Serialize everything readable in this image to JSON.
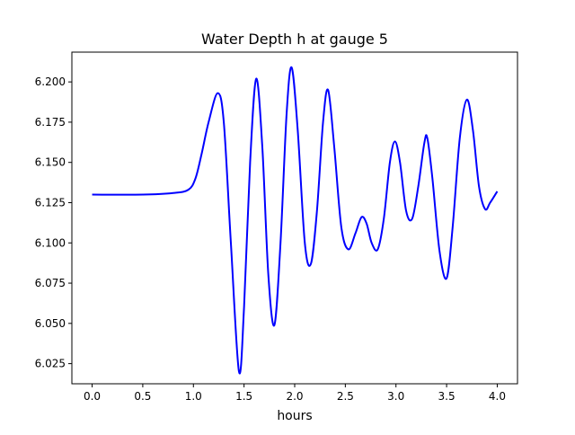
{
  "chart_data": {
    "type": "line",
    "title": "Water Depth h at gauge 5",
    "xlabel": "hours",
    "ylabel": "",
    "xlim": [
      -0.2,
      4.2
    ],
    "ylim": [
      6.0125,
      6.2185
    ],
    "xticks": [
      0.0,
      0.5,
      1.0,
      1.5,
      2.0,
      2.5,
      3.0,
      3.5,
      4.0
    ],
    "xtick_labels": [
      "0.0",
      "0.5",
      "1.0",
      "1.5",
      "2.0",
      "2.5",
      "3.0",
      "3.5",
      "4.0"
    ],
    "yticks": [
      6.025,
      6.05,
      6.075,
      6.1,
      6.125,
      6.15,
      6.175,
      6.2
    ],
    "ytick_labels": [
      "6.025",
      "6.050",
      "6.075",
      "6.100",
      "6.125",
      "6.150",
      "6.175",
      "6.200"
    ],
    "grid": false,
    "series": [
      {
        "color": "#0000ff",
        "x": [
          0.0,
          0.5,
          0.8,
          0.95,
          1.02,
          1.08,
          1.15,
          1.24,
          1.3,
          1.37,
          1.45,
          1.5,
          1.56,
          1.62,
          1.68,
          1.74,
          1.8,
          1.86,
          1.92,
          1.97,
          2.03,
          2.1,
          2.16,
          2.22,
          2.28,
          2.33,
          2.39,
          2.46,
          2.53,
          2.6,
          2.66,
          2.71,
          2.76,
          2.82,
          2.88,
          2.94,
          2.99,
          3.04,
          3.1,
          3.16,
          3.22,
          3.28,
          3.31,
          3.36,
          3.43,
          3.5,
          3.56,
          3.63,
          3.7,
          3.76,
          3.82,
          3.88,
          3.93,
          4.0
        ],
        "y": [
          6.13,
          6.13,
          6.131,
          6.133,
          6.14,
          6.155,
          6.175,
          6.193,
          6.175,
          6.1,
          6.02,
          6.06,
          6.15,
          6.202,
          6.16,
          6.08,
          6.049,
          6.1,
          6.18,
          6.209,
          6.17,
          6.1,
          6.087,
          6.12,
          6.175,
          6.195,
          6.16,
          6.11,
          6.096,
          6.106,
          6.116,
          6.112,
          6.1,
          6.096,
          6.115,
          6.15,
          6.163,
          6.15,
          6.12,
          6.115,
          6.135,
          6.162,
          6.165,
          6.14,
          6.095,
          6.078,
          6.11,
          6.165,
          6.189,
          6.17,
          6.135,
          6.121,
          6.125,
          6.132
        ]
      }
    ]
  }
}
